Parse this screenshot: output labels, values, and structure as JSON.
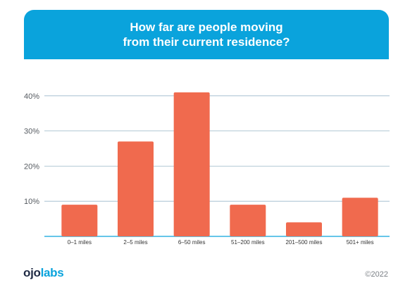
{
  "header": {
    "title_line1": "How far are people moving",
    "title_line2": "from their current residence?"
  },
  "colors": {
    "banner": "#0aa3dc",
    "bar": "#f06a4e",
    "grid": "#9bb8c9",
    "axis": "#0aa3dc"
  },
  "chart_data": {
    "type": "bar",
    "title": "How far are people moving from their current residence?",
    "categories": [
      "0–1 miles",
      "2–5 miles",
      "6–50 miles",
      "51–200 miles",
      "201–500 miles",
      "501+ miles"
    ],
    "values": [
      9,
      27,
      41,
      9,
      4,
      11
    ],
    "unit": "%",
    "ylim": [
      0,
      40
    ],
    "yticks": [
      "10%",
      "20%",
      "30%",
      "40%"
    ],
    "grid": true
  },
  "footer": {
    "logo_ojo": "ojo",
    "logo_labs": "labs",
    "copyright": "©2022"
  }
}
